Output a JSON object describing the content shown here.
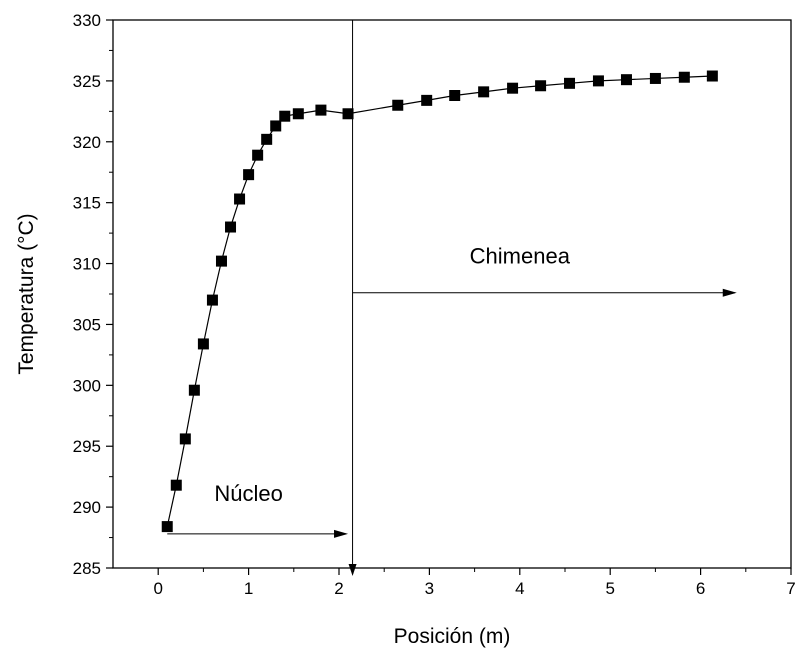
{
  "chart_data": {
    "type": "scatter",
    "xlabel": "Posición (m)",
    "ylabel": "Temperatura (°C)",
    "xlim": [
      -0.5,
      7
    ],
    "ylim": [
      285,
      330
    ],
    "xticks": [
      "0",
      "1",
      "2",
      "3",
      "4",
      "5",
      "6",
      "7"
    ],
    "yticks": [
      "285",
      "290",
      "295",
      "300",
      "305",
      "310",
      "315",
      "320",
      "325",
      "330"
    ],
    "grid": false,
    "series": [
      {
        "marker": "square",
        "connected": true,
        "color": "#000000",
        "points": [
          [
            0.1,
            288.4
          ],
          [
            0.2,
            291.8
          ],
          [
            0.3,
            295.6
          ],
          [
            0.4,
            299.6
          ],
          [
            0.5,
            303.4
          ],
          [
            0.6,
            307.0
          ],
          [
            0.7,
            310.2
          ],
          [
            0.8,
            313.0
          ],
          [
            0.9,
            315.3
          ],
          [
            1.0,
            317.3
          ],
          [
            1.1,
            318.9
          ],
          [
            1.2,
            320.2
          ],
          [
            1.3,
            321.3
          ],
          [
            1.4,
            322.1
          ],
          [
            1.55,
            322.3
          ],
          [
            1.8,
            322.6
          ],
          [
            2.1,
            322.3
          ],
          [
            2.65,
            323.0
          ],
          [
            2.97,
            323.4
          ],
          [
            3.28,
            323.8
          ],
          [
            3.6,
            324.1
          ],
          [
            3.92,
            324.4
          ],
          [
            4.23,
            324.6
          ],
          [
            4.55,
            324.8
          ],
          [
            4.87,
            325.0
          ],
          [
            5.18,
            325.1
          ],
          [
            5.5,
            325.2
          ],
          [
            5.82,
            325.3
          ],
          [
            6.13,
            325.4
          ]
        ]
      }
    ],
    "annotations": [
      {
        "text": "Núcleo",
        "x": 1.0,
        "y": 290.5
      },
      {
        "text": "Chimenea",
        "x": 4.0,
        "y": 310.0
      }
    ],
    "arrows": [
      {
        "from": [
          0.1,
          287.8
        ],
        "to": [
          2.1,
          287.8
        ]
      },
      {
        "from": [
          2.15,
          307.6
        ],
        "to": [
          6.4,
          307.6
        ]
      }
    ],
    "divider_x": 2.15
  }
}
